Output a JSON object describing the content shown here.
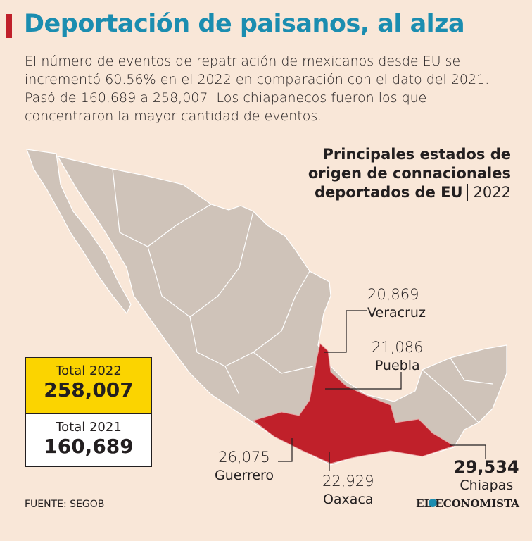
{
  "header": {
    "title": "Deportación de paisanos, al alza",
    "intro": "El número de eventos de repatriación de mexicanos desde EU se incrementó 60.56% en el 2022 en comparación con el dato del 2021. Pasó de 160,689 a 258,007. Los chiapanecos fueron los que concentraron la mayor cantidad de eventos."
  },
  "map": {
    "subtitle_lines": [
      "Principales estados de",
      "origen de connacionales",
      "deportados de EU"
    ],
    "year": "2022",
    "states": [
      {
        "name": "Veracruz",
        "value": "20,869"
      },
      {
        "name": "Puebla",
        "value": "21,086"
      },
      {
        "name": "Guerrero",
        "value": "26,075"
      },
      {
        "name": "Oaxaca",
        "value": "22,929"
      },
      {
        "name": "Chiapas",
        "value": "29,534"
      }
    ]
  },
  "totals": [
    {
      "label": "Total 2022",
      "value": "258,007"
    },
    {
      "label": "Total 2021",
      "value": "160,689"
    }
  ],
  "footer": {
    "source": "FUENTE: SEGOB",
    "brand": "EL ECONOMISTA"
  }
}
